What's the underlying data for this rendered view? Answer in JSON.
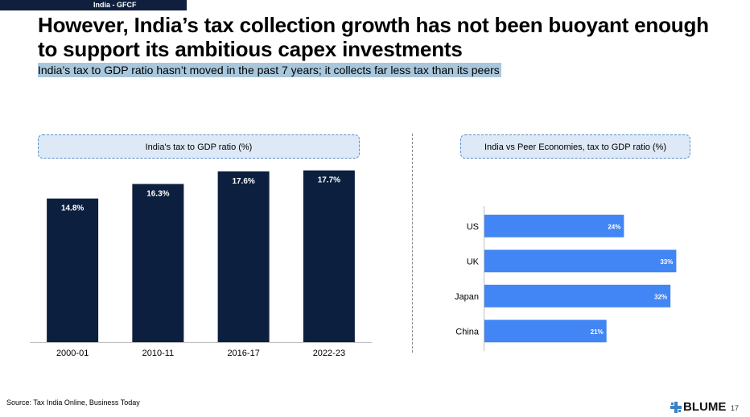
{
  "header": {
    "tag": "India - GFCF",
    "title": "However, India’s tax collection growth has not been buoyant enough to support its ambitious capex investments",
    "subtitle": "India’s tax to GDP ratio hasn’t moved in the past 7 years; it collects far less tax than its peers"
  },
  "footer": {
    "source": "Source: Tax India Online, Business Today",
    "brand": "BLUME",
    "page": "17"
  },
  "colors": {
    "dark_bar": "#0d1f3e",
    "blue_bar": "#4285f4",
    "box_fill": "#dde9f6"
  },
  "chart_data": [
    {
      "type": "bar",
      "title": "India's tax to GDP ratio (%)",
      "categories": [
        "2000-01",
        "2010-11",
        "2016-17",
        "2022-23"
      ],
      "values": [
        14.8,
        16.3,
        17.6,
        17.7
      ],
      "labels": [
        "14.8%",
        "16.3%",
        "17.6%",
        "17.7%"
      ],
      "xlabel": "",
      "ylabel": "",
      "ylim": [
        0,
        19
      ],
      "grid": false
    },
    {
      "type": "bar",
      "orientation": "horizontal",
      "title": "India vs Peer Economies, tax to GDP ratio (%)",
      "categories": [
        "US",
        "UK",
        "Japan",
        "China"
      ],
      "values": [
        24,
        33,
        32,
        21
      ],
      "labels": [
        "24%",
        "33%",
        "32%",
        "21%"
      ],
      "xlim": [
        0,
        33.5
      ],
      "grid": false
    }
  ]
}
